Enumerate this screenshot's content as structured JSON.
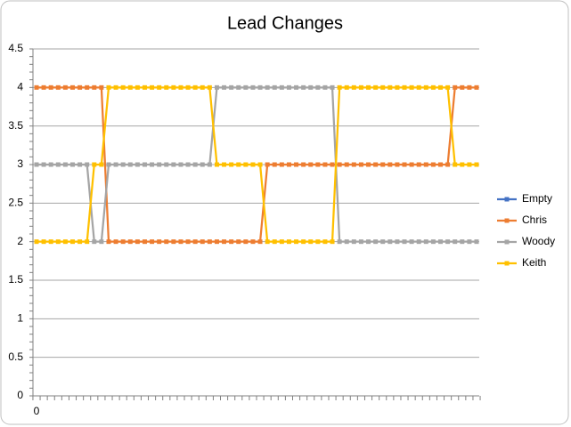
{
  "chart_data": {
    "type": "line",
    "title": "Lead Changes",
    "categories": [
      "0",
      null,
      null,
      null,
      null,
      null,
      null,
      null,
      null,
      null,
      null,
      null,
      null,
      null,
      null,
      null,
      null,
      null,
      null,
      null,
      null,
      null,
      null,
      null,
      null,
      null,
      null,
      null,
      null,
      null,
      null,
      null,
      null,
      null,
      null,
      null,
      null,
      null,
      null,
      null,
      null,
      null,
      null,
      null,
      null,
      null,
      null,
      null,
      null,
      null,
      null,
      null,
      null,
      null,
      null,
      null,
      null,
      null,
      null,
      null,
      null,
      null
    ],
    "series": [
      {
        "name": "Empty",
        "color": "#4472c4",
        "values": [
          null,
          null,
          null,
          null,
          null,
          null,
          null,
          null,
          null,
          null,
          null,
          null,
          null,
          null,
          null,
          null,
          null,
          null,
          null,
          null,
          null,
          null,
          null,
          null,
          null,
          null,
          null,
          null,
          null,
          null,
          null,
          null,
          null,
          null,
          null,
          null,
          null,
          null,
          null,
          null,
          null,
          null,
          null,
          null,
          null,
          null,
          null,
          null,
          null,
          null,
          null,
          null,
          null,
          null,
          null,
          null,
          null,
          null,
          null,
          null,
          null,
          null
        ]
      },
      {
        "name": "Chris",
        "color": "#ed7d31",
        "values": [
          4,
          4,
          4,
          4,
          4,
          4,
          4,
          4,
          4,
          4,
          2,
          2,
          2,
          2,
          2,
          2,
          2,
          2,
          2,
          2,
          2,
          2,
          2,
          2,
          2,
          2,
          2,
          2,
          2,
          2,
          2,
          2,
          3,
          3,
          3,
          3,
          3,
          3,
          3,
          3,
          3,
          3,
          3,
          3,
          3,
          3,
          3,
          3,
          3,
          3,
          3,
          3,
          3,
          3,
          3,
          3,
          3,
          3,
          4,
          4,
          4,
          4
        ]
      },
      {
        "name": "Woody",
        "color": "#a5a5a5",
        "values": [
          3,
          3,
          3,
          3,
          3,
          3,
          3,
          3,
          2,
          2,
          3,
          3,
          3,
          3,
          3,
          3,
          3,
          3,
          3,
          3,
          3,
          3,
          3,
          3,
          3,
          4,
          4,
          4,
          4,
          4,
          4,
          4,
          4,
          4,
          4,
          4,
          4,
          4,
          4,
          4,
          4,
          4,
          2,
          2,
          2,
          2,
          2,
          2,
          2,
          2,
          2,
          2,
          2,
          2,
          2,
          2,
          2,
          2,
          2,
          2,
          2,
          2
        ]
      },
      {
        "name": "Keith",
        "color": "#ffc000",
        "values": [
          2,
          2,
          2,
          2,
          2,
          2,
          2,
          2,
          3,
          3,
          4,
          4,
          4,
          4,
          4,
          4,
          4,
          4,
          4,
          4,
          4,
          4,
          4,
          4,
          4,
          3,
          3,
          3,
          3,
          3,
          3,
          3,
          2,
          2,
          2,
          2,
          2,
          2,
          2,
          2,
          2,
          2,
          4,
          4,
          4,
          4,
          4,
          4,
          4,
          4,
          4,
          4,
          4,
          4,
          4,
          4,
          4,
          4,
          3,
          3,
          3,
          3
        ]
      }
    ],
    "ylim": [
      0,
      4.5
    ],
    "yticks": [
      0,
      0.5,
      1,
      1.5,
      2,
      2.5,
      3,
      3.5,
      4,
      4.5
    ],
    "grid": true,
    "legend": "right"
  }
}
